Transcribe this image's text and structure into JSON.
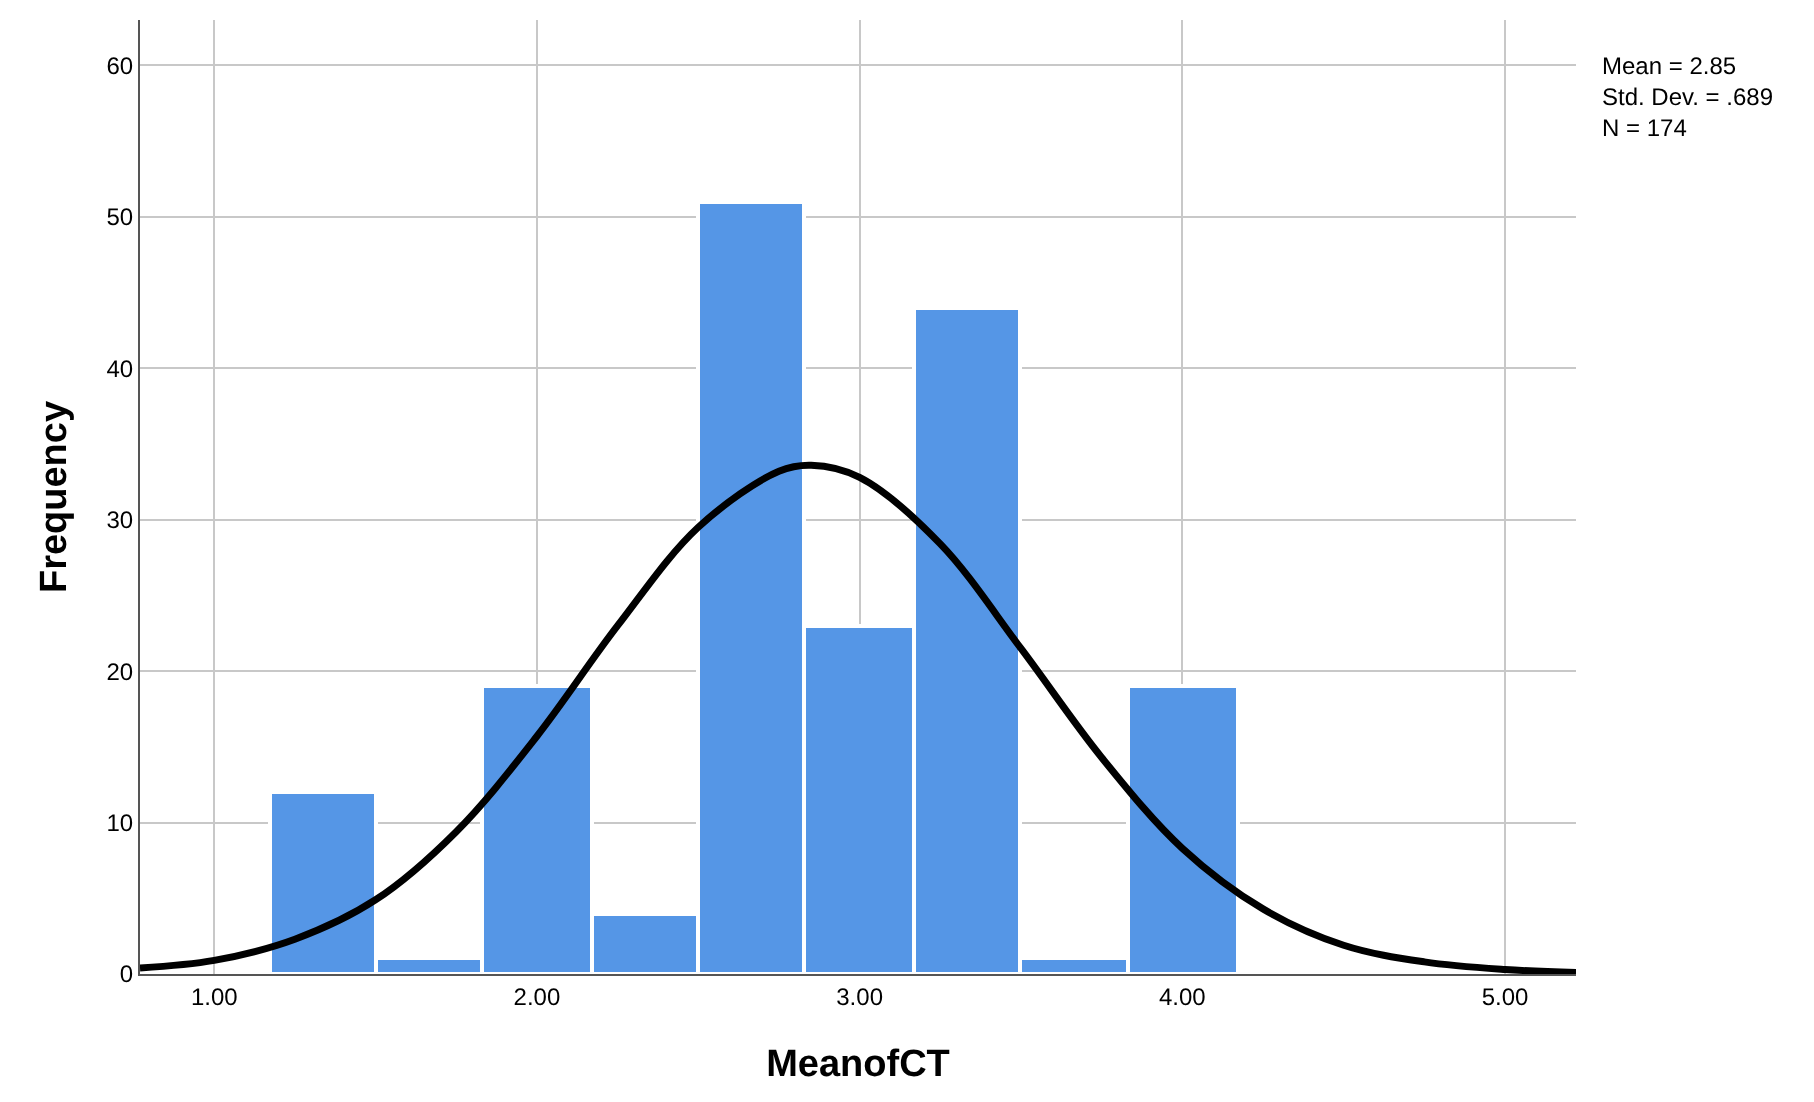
{
  "chart_data": {
    "type": "histogram",
    "xlabel": "MeanofCT",
    "ylabel": "Frequency",
    "bins": [
      1.17,
      1.5,
      1.83,
      2.17,
      2.5,
      2.83,
      3.17,
      3.5,
      3.83,
      4.17
    ],
    "values": [
      12,
      1,
      19,
      4,
      51,
      23,
      44,
      1,
      19
    ],
    "color": "#5596e6",
    "series": [
      {
        "type": "line",
        "color": "#000000",
        "x": [
          0.77,
          1.0,
          1.25,
          1.5,
          1.75,
          2.0,
          2.25,
          2.5,
          2.75,
          2.85,
          3.0,
          3.25,
          3.5,
          3.75,
          4.0,
          4.25,
          4.5,
          4.75,
          5.0,
          5.22
        ],
        "values": [
          0.4,
          0.9,
          2.3,
          4.9,
          9.4,
          15.7,
          23.0,
          29.5,
          33.2,
          33.6,
          32.8,
          28.4,
          21.5,
          14.3,
          8.3,
          4.3,
          1.9,
          0.8,
          0.3,
          0.1
        ]
      }
    ],
    "xlim": [
      0.77,
      5.22
    ],
    "xticks": [
      {
        "value": 1,
        "label": "1.00"
      },
      {
        "value": 2,
        "label": "2.00"
      },
      {
        "value": 3,
        "label": "3.00"
      },
      {
        "value": 4,
        "label": "4.00"
      },
      {
        "value": 5,
        "label": "5.00"
      }
    ],
    "ylim": [
      0,
      63
    ],
    "yticks": [
      0,
      10,
      20,
      30,
      40,
      50,
      60
    ],
    "grid": true,
    "line_style": "solid",
    "marker": "none",
    "annotations": [
      "Mean = 2.85\nStd. Dev. = .689\nN = 174"
    ]
  }
}
